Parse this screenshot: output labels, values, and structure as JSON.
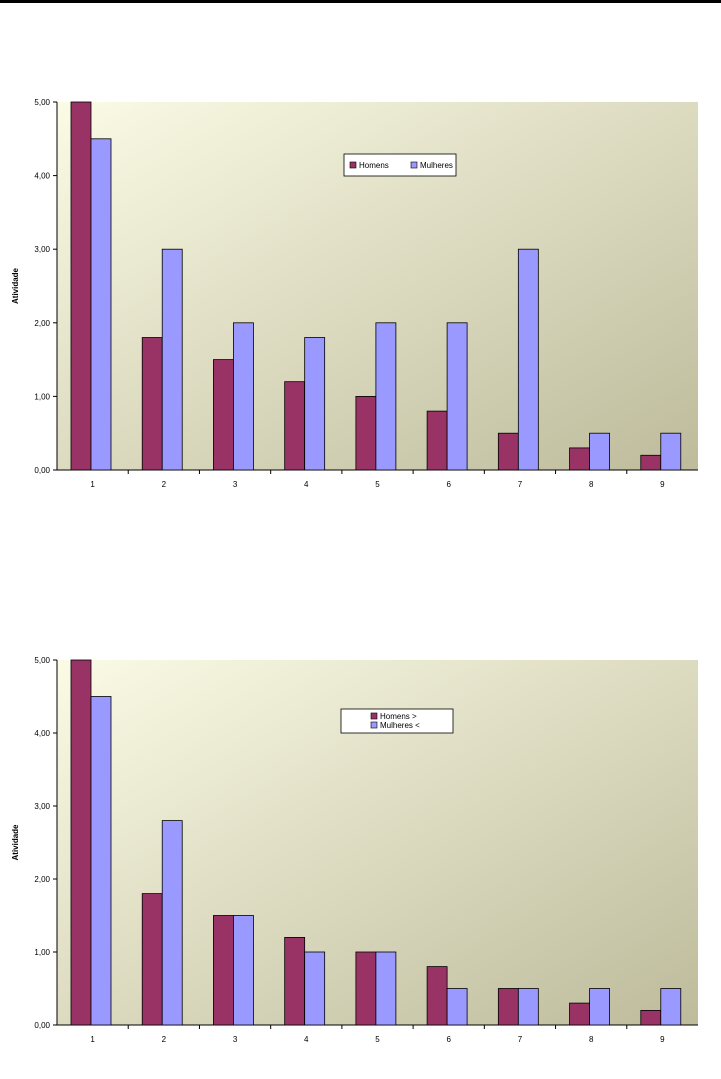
{
  "colors": {
    "homens": "#993366",
    "mulheres": "#9999ff",
    "plot_bg_light": "#fbfbe6",
    "plot_bg_dark": "#bdbb9b"
  },
  "chart_data": [
    {
      "type": "bar",
      "categories": [
        "1",
        "2",
        "3",
        "4",
        "5",
        "6",
        "7",
        "8",
        "9"
      ],
      "series": [
        {
          "name": "Homens",
          "values": [
            5.0,
            1.8,
            1.5,
            1.2,
            1.0,
            0.8,
            0.5,
            0.3,
            0.2
          ]
        },
        {
          "name": "Mulheres",
          "values": [
            4.5,
            3.0,
            2.0,
            1.8,
            2.0,
            2.0,
            3.0,
            0.5,
            0.5
          ]
        }
      ],
      "title": "",
      "xlabel": "",
      "ylabel": "Atividade",
      "ylim": [
        0,
        5
      ],
      "yticks": [
        "0,00",
        "1,00",
        "2,00",
        "3,00",
        "4,00",
        "5,00"
      ],
      "grid": false,
      "legend_position": "top-right",
      "legend_layout": "horizontal"
    },
    {
      "type": "bar",
      "categories": [
        "1",
        "2",
        "3",
        "4",
        "5",
        "6",
        "7",
        "8",
        "9"
      ],
      "series": [
        {
          "name": "Homens >",
          "values": [
            5.0,
            1.8,
            1.5,
            1.2,
            1.0,
            0.8,
            0.5,
            0.3,
            0.2
          ]
        },
        {
          "name": "Mulheres <",
          "values": [
            4.5,
            2.8,
            1.5,
            1.0,
            1.0,
            0.5,
            0.5,
            0.5,
            0.5
          ]
        }
      ],
      "title": "",
      "xlabel": "",
      "ylabel": "Atividade",
      "ylim": [
        0,
        5
      ],
      "yticks": [
        "0,00",
        "1,00",
        "2,00",
        "3,00",
        "4,00",
        "5,00"
      ],
      "grid": false,
      "legend_position": "top-right",
      "legend_layout": "vertical"
    }
  ]
}
